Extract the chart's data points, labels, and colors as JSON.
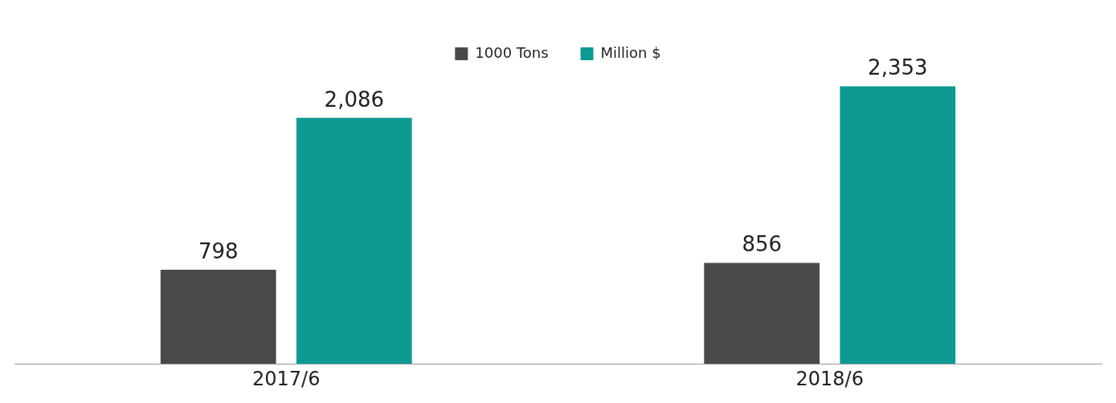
{
  "chart_data": {
    "type": "bar",
    "categories": [
      "2017/6",
      "2018/6"
    ],
    "series": [
      {
        "name": "1000 Tons",
        "color": "#4a4a4d",
        "values": [
          798,
          856
        ],
        "value_labels": [
          "798",
          "856"
        ]
      },
      {
        "name": "Million $",
        "color": "#0e9a92",
        "values": [
          2086,
          2353
        ],
        "value_labels": [
          "2,086",
          "2,353"
        ]
      }
    ],
    "legend": "top",
    "grid": false
  }
}
